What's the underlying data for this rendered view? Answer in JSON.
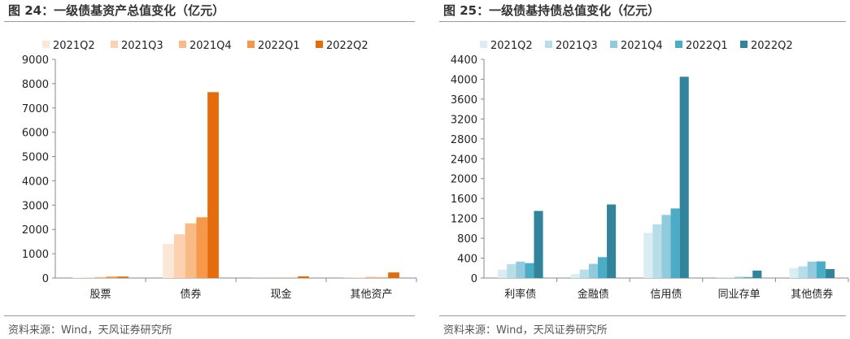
{
  "chart_data": [
    {
      "type": "bar",
      "title": "图 24：一级债基资产总值变化（亿元）",
      "source": "资料来源：Wind，天风证券研究所",
      "categories": [
        "股票",
        "债券",
        "现金",
        "其他资产"
      ],
      "ylim": [
        0,
        9000
      ],
      "yticks": [
        0,
        1000,
        2000,
        3000,
        4000,
        5000,
        6000,
        7000,
        8000,
        9000
      ],
      "legend": "top",
      "grid": false,
      "series": [
        {
          "name": "2021Q2",
          "color": "#fce7d6",
          "values": [
            20,
            1400,
            5,
            10
          ]
        },
        {
          "name": "2021Q3",
          "color": "#fbd1b0",
          "values": [
            20,
            1800,
            5,
            20
          ]
        },
        {
          "name": "2021Q4",
          "color": "#f8bb86",
          "values": [
            40,
            2250,
            5,
            50
          ]
        },
        {
          "name": "2022Q1",
          "color": "#f5984a",
          "values": [
            60,
            2500,
            10,
            25
          ]
        },
        {
          "name": "2022Q2",
          "color": "#e46c0a",
          "values": [
            60,
            7650,
            70,
            230
          ]
        }
      ]
    },
    {
      "type": "bar",
      "title": "图 25：一级债基持债总值变化（亿元）",
      "source": "资料来源：Wind，天风证券研究所",
      "categories": [
        "利率债",
        "金融债",
        "信用债",
        "同业存单",
        "其他债券"
      ],
      "ylim": [
        0,
        4400
      ],
      "yticks": [
        0,
        400,
        800,
        1200,
        1600,
        2000,
        2400,
        2800,
        3200,
        3600,
        4000,
        4400
      ],
      "legend": "top",
      "grid": false,
      "series": [
        {
          "name": "2021Q2",
          "color": "#daedf3",
          "values": [
            170,
            80,
            910,
            5,
            200
          ]
        },
        {
          "name": "2021Q3",
          "color": "#b7dde8",
          "values": [
            280,
            170,
            1080,
            10,
            235
          ]
        },
        {
          "name": "2021Q4",
          "color": "#92cadd",
          "values": [
            330,
            285,
            1270,
            25,
            330
          ]
        },
        {
          "name": "2022Q1",
          "color": "#4bacc6",
          "values": [
            300,
            420,
            1400,
            20,
            335
          ]
        },
        {
          "name": "2022Q2",
          "color": "#31849b",
          "values": [
            1350,
            1480,
            4050,
            150,
            180
          ]
        }
      ]
    }
  ]
}
